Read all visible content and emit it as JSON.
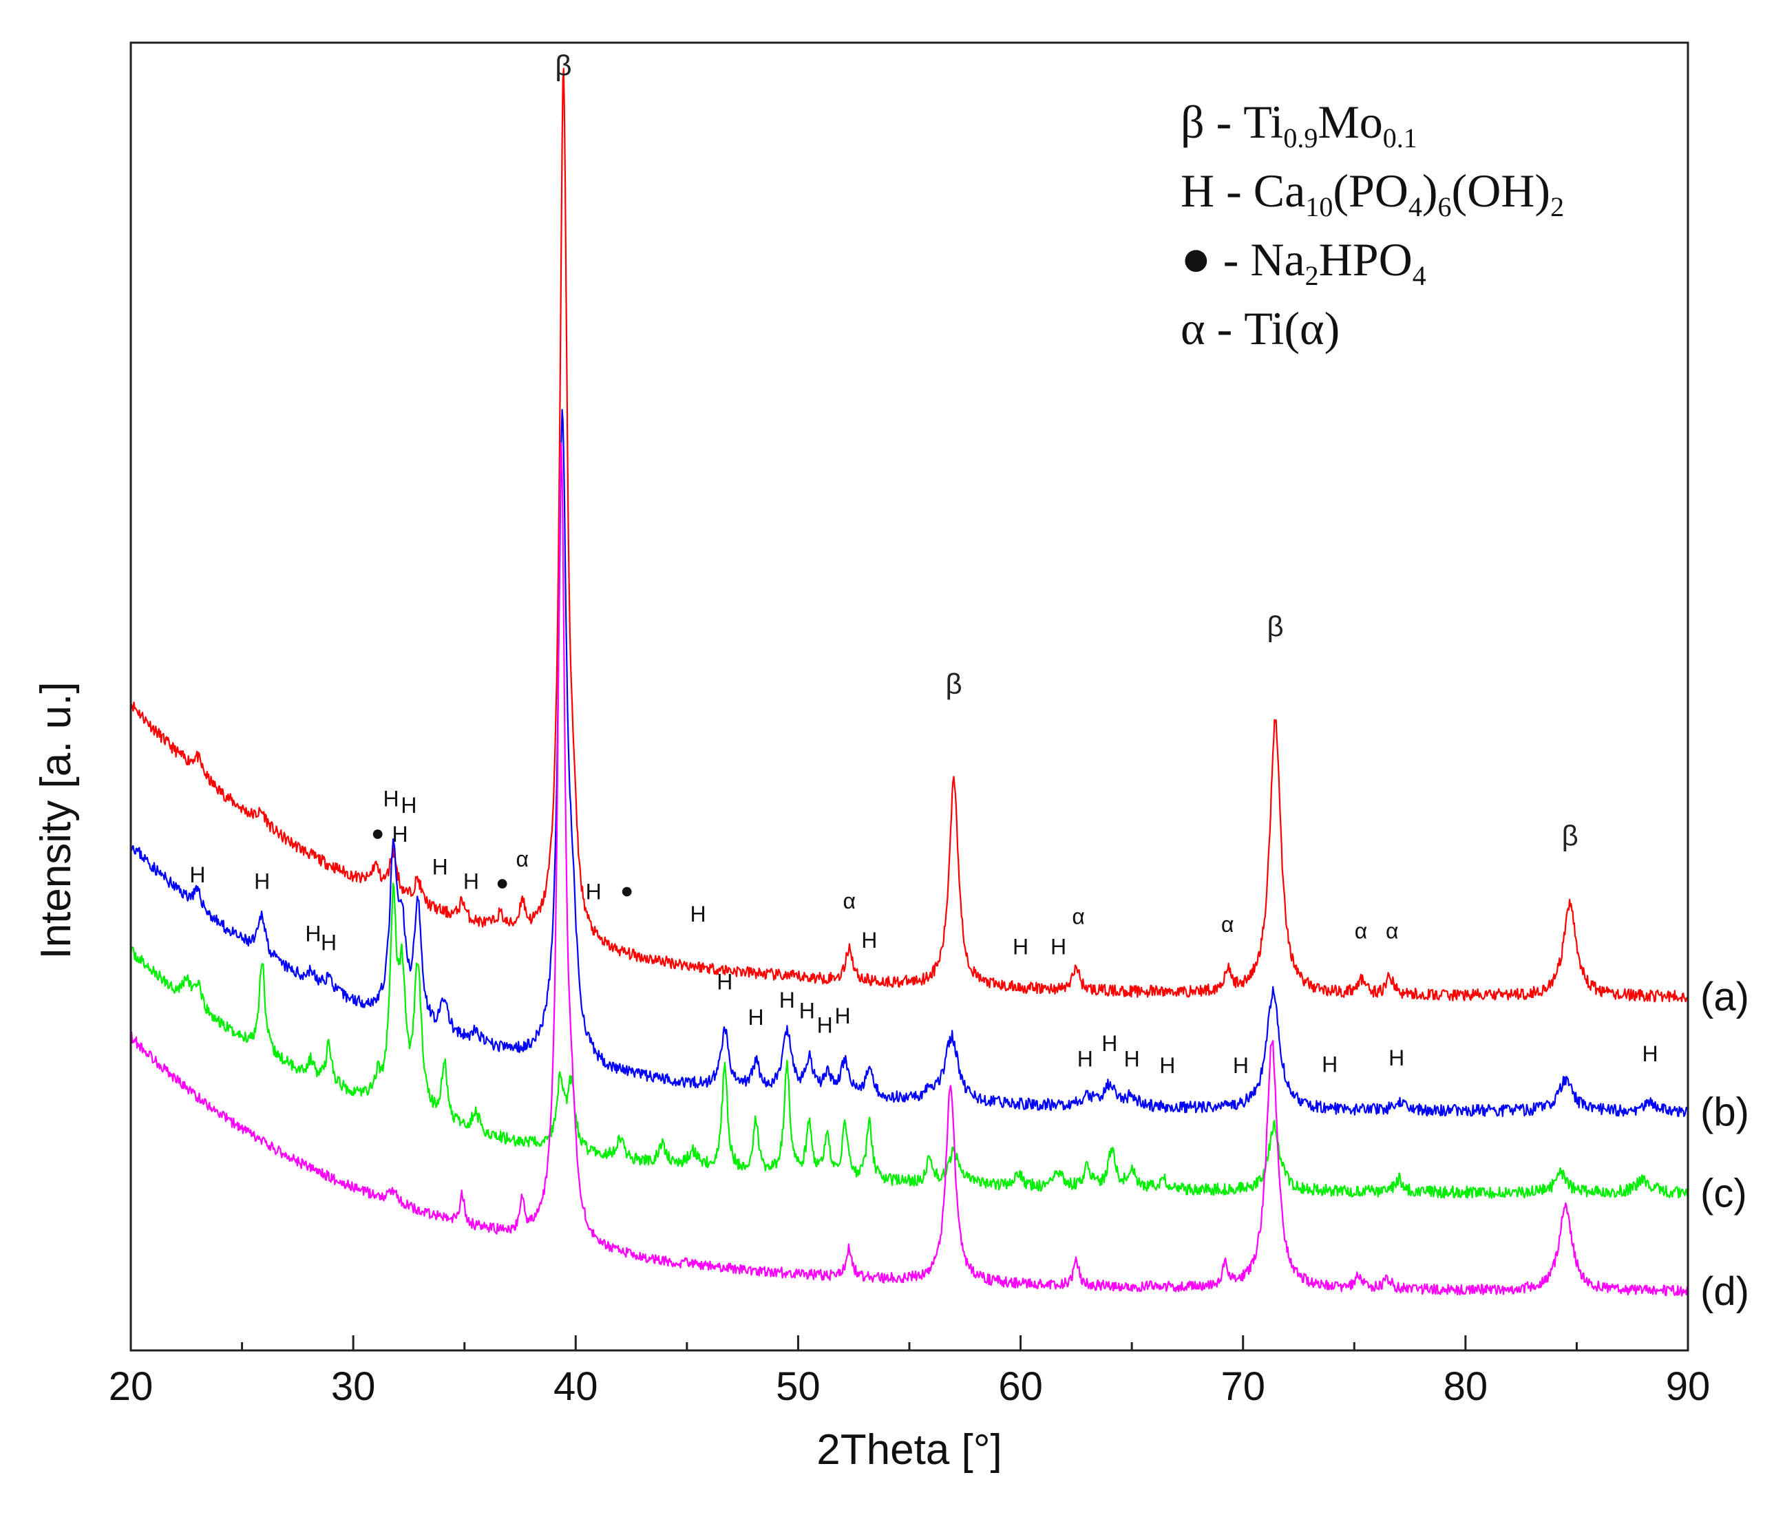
{
  "chart_data": {
    "type": "line",
    "title": "",
    "xlabel": "2Theta [°]",
    "ylabel": "Intensity [a. u.]",
    "xlim": [
      20,
      90
    ],
    "ylim": [
      0,
      100
    ],
    "x_ticks": [
      20,
      30,
      40,
      50,
      60,
      70,
      80,
      90
    ],
    "x_tick_labels": [
      "20",
      "30",
      "40",
      "50",
      "60",
      "70",
      "80",
      "90"
    ],
    "y_ticks_shown": false,
    "grid": false,
    "series": [
      {
        "name": "(a)",
        "color": "#ff0000",
        "offset": 27.0,
        "baseline": {
          "a": 22.5,
          "k": 0.09
        },
        "noise": 0.45,
        "seed": 11,
        "peaks": [
          {
            "x": 23.0,
            "h": 1.2,
            "w": 0.25
          },
          {
            "x": 25.9,
            "h": 0.9,
            "w": 0.25
          },
          {
            "x": 31.0,
            "h": 1.6,
            "w": 0.2
          },
          {
            "x": 31.8,
            "h": 3.2,
            "w": 0.2
          },
          {
            "x": 32.9,
            "h": 1.8,
            "w": 0.2
          },
          {
            "x": 34.9,
            "h": 1.4,
            "w": 0.15
          },
          {
            "x": 36.6,
            "h": 1.0,
            "w": 0.2
          },
          {
            "x": 37.6,
            "h": 2.2,
            "w": 0.15
          },
          {
            "x": 39.45,
            "h": 66.0,
            "w": 0.2
          },
          {
            "x": 39.9,
            "h": 5.0,
            "w": 0.2
          },
          {
            "x": 52.3,
            "h": 2.6,
            "w": 0.18
          },
          {
            "x": 57.0,
            "h": 16.0,
            "w": 0.25
          },
          {
            "x": 62.5,
            "h": 1.8,
            "w": 0.18
          },
          {
            "x": 69.3,
            "h": 1.6,
            "w": 0.18
          },
          {
            "x": 71.45,
            "h": 21.0,
            "w": 0.3
          },
          {
            "x": 75.3,
            "h": 1.1,
            "w": 0.2
          },
          {
            "x": 76.6,
            "h": 1.4,
            "w": 0.18
          },
          {
            "x": 84.7,
            "h": 7.0,
            "w": 0.35
          }
        ]
      },
      {
        "name": "(b)",
        "color": "#0000ff",
        "offset": 18.2,
        "baseline": {
          "a": 20.5,
          "k": 0.09
        },
        "noise": 0.45,
        "seed": 23,
        "peaks": [
          {
            "x": 23.0,
            "h": 1.2,
            "w": 0.25
          },
          {
            "x": 25.9,
            "h": 3.0,
            "w": 0.2
          },
          {
            "x": 28.1,
            "h": 0.8,
            "w": 0.2
          },
          {
            "x": 28.9,
            "h": 1.1,
            "w": 0.2
          },
          {
            "x": 31.8,
            "h": 12.0,
            "w": 0.2
          },
          {
            "x": 32.2,
            "h": 6.0,
            "w": 0.2
          },
          {
            "x": 32.9,
            "h": 9.0,
            "w": 0.2
          },
          {
            "x": 34.1,
            "h": 2.5,
            "w": 0.2
          },
          {
            "x": 35.5,
            "h": 0.8,
            "w": 0.25
          },
          {
            "x": 39.4,
            "h": 48.0,
            "w": 0.22
          },
          {
            "x": 39.85,
            "h": 8.0,
            "w": 0.25
          },
          {
            "x": 46.7,
            "h": 4.5,
            "w": 0.2
          },
          {
            "x": 48.1,
            "h": 2.0,
            "w": 0.2
          },
          {
            "x": 49.5,
            "h": 4.5,
            "w": 0.25
          },
          {
            "x": 50.5,
            "h": 2.5,
            "w": 0.2
          },
          {
            "x": 51.3,
            "h": 1.5,
            "w": 0.2
          },
          {
            "x": 52.1,
            "h": 2.6,
            "w": 0.22
          },
          {
            "x": 53.2,
            "h": 2.2,
            "w": 0.22
          },
          {
            "x": 55.9,
            "h": 0.8,
            "w": 0.25
          },
          {
            "x": 56.9,
            "h": 5.0,
            "w": 0.35
          },
          {
            "x": 63.0,
            "h": 0.8,
            "w": 0.3
          },
          {
            "x": 64.0,
            "h": 1.6,
            "w": 0.3
          },
          {
            "x": 65.0,
            "h": 0.8,
            "w": 0.3
          },
          {
            "x": 71.35,
            "h": 9.0,
            "w": 0.35
          },
          {
            "x": 77.0,
            "h": 0.6,
            "w": 0.3
          },
          {
            "x": 84.5,
            "h": 2.4,
            "w": 0.4
          },
          {
            "x": 88.3,
            "h": 0.8,
            "w": 0.3
          }
        ]
      },
      {
        "name": "(c)",
        "color": "#00ee00",
        "offset": 12.0,
        "baseline": {
          "a": 18.5,
          "k": 0.09
        },
        "noise": 0.45,
        "seed": 37,
        "peaks": [
          {
            "x": 22.5,
            "h": 1.5,
            "w": 0.2
          },
          {
            "x": 23.0,
            "h": 1.8,
            "w": 0.2
          },
          {
            "x": 25.9,
            "h": 7.0,
            "w": 0.15
          },
          {
            "x": 28.1,
            "h": 1.2,
            "w": 0.15
          },
          {
            "x": 28.9,
            "h": 3.0,
            "w": 0.15
          },
          {
            "x": 31.1,
            "h": 1.5,
            "w": 0.18
          },
          {
            "x": 31.8,
            "h": 15.0,
            "w": 0.18
          },
          {
            "x": 32.2,
            "h": 9.0,
            "w": 0.18
          },
          {
            "x": 32.9,
            "h": 11.0,
            "w": 0.2
          },
          {
            "x": 34.1,
            "h": 4.5,
            "w": 0.15
          },
          {
            "x": 35.5,
            "h": 1.5,
            "w": 0.2
          },
          {
            "x": 39.3,
            "h": 5.0,
            "w": 0.2
          },
          {
            "x": 39.8,
            "h": 5.0,
            "w": 0.2
          },
          {
            "x": 42.0,
            "h": 1.5,
            "w": 0.2
          },
          {
            "x": 43.9,
            "h": 1.5,
            "w": 0.2
          },
          {
            "x": 45.3,
            "h": 1.2,
            "w": 0.3
          },
          {
            "x": 46.7,
            "h": 8.0,
            "w": 0.15
          },
          {
            "x": 48.1,
            "h": 4.0,
            "w": 0.15
          },
          {
            "x": 49.5,
            "h": 8.5,
            "w": 0.15
          },
          {
            "x": 50.5,
            "h": 4.0,
            "w": 0.15
          },
          {
            "x": 51.3,
            "h": 3.0,
            "w": 0.15
          },
          {
            "x": 52.1,
            "h": 4.0,
            "w": 0.15
          },
          {
            "x": 53.2,
            "h": 4.5,
            "w": 0.15
          },
          {
            "x": 55.9,
            "h": 2.0,
            "w": 0.15
          },
          {
            "x": 57.0,
            "h": 2.5,
            "w": 0.3
          },
          {
            "x": 59.9,
            "h": 1.0,
            "w": 0.2
          },
          {
            "x": 61.7,
            "h": 1.2,
            "w": 0.2
          },
          {
            "x": 63.0,
            "h": 1.5,
            "w": 0.2
          },
          {
            "x": 64.1,
            "h": 3.0,
            "w": 0.2
          },
          {
            "x": 65.0,
            "h": 1.6,
            "w": 0.2
          },
          {
            "x": 66.4,
            "h": 0.8,
            "w": 0.2
          },
          {
            "x": 71.4,
            "h": 5.0,
            "w": 0.3
          },
          {
            "x": 77.0,
            "h": 1.0,
            "w": 0.2
          },
          {
            "x": 84.3,
            "h": 1.5,
            "w": 0.3
          },
          {
            "x": 88.0,
            "h": 1.0,
            "w": 0.4
          }
        ]
      },
      {
        "name": "(d)",
        "color": "#ff00ff",
        "offset": 4.5,
        "baseline": {
          "a": 19.5,
          "k": 0.09
        },
        "noise": 0.4,
        "seed": 53,
        "peaks": [
          {
            "x": 31.8,
            "h": 0.9,
            "w": 0.3
          },
          {
            "x": 34.9,
            "h": 2.2,
            "w": 0.12
          },
          {
            "x": 37.6,
            "h": 2.4,
            "w": 0.12
          },
          {
            "x": 39.35,
            "h": 60.0,
            "w": 0.2
          },
          {
            "x": 39.8,
            "h": 6.0,
            "w": 0.25
          },
          {
            "x": 52.3,
            "h": 2.2,
            "w": 0.15
          },
          {
            "x": 56.85,
            "h": 15.0,
            "w": 0.25
          },
          {
            "x": 62.5,
            "h": 1.8,
            "w": 0.15
          },
          {
            "x": 69.2,
            "h": 1.6,
            "w": 0.15
          },
          {
            "x": 71.3,
            "h": 19.0,
            "w": 0.3
          },
          {
            "x": 75.2,
            "h": 1.0,
            "w": 0.2
          },
          {
            "x": 76.5,
            "h": 0.8,
            "w": 0.2
          },
          {
            "x": 84.5,
            "h": 6.5,
            "w": 0.35
          }
        ]
      }
    ],
    "peak_annotations": [
      {
        "text": "β",
        "x": 39.45,
        "y": 97.5,
        "color": "#222222",
        "size": "large"
      },
      {
        "text": "β",
        "x": 57.0,
        "y": 50.2,
        "color": "#222222",
        "size": "large"
      },
      {
        "text": "β",
        "x": 71.45,
        "y": 54.6,
        "color": "#222222",
        "size": "large"
      },
      {
        "text": "β",
        "x": 84.7,
        "y": 38.6,
        "color": "#222222",
        "size": "large"
      },
      {
        "text": "●",
        "x": 31.1,
        "y": 39.0,
        "color": "#111111",
        "size": "small"
      },
      {
        "text": "●",
        "x": 36.7,
        "y": 35.2,
        "color": "#111111",
        "size": "small"
      },
      {
        "text": "●",
        "x": 42.3,
        "y": 34.6,
        "color": "#111111",
        "size": "small"
      },
      {
        "text": "H",
        "x": 31.7,
        "y": 41.6,
        "color": "#111111",
        "size": "small"
      },
      {
        "text": "H",
        "x": 32.5,
        "y": 41.1,
        "color": "#111111",
        "size": "small"
      },
      {
        "text": "H",
        "x": 32.1,
        "y": 38.9,
        "color": "#111111",
        "size": "small"
      },
      {
        "text": "H",
        "x": 33.9,
        "y": 36.4,
        "color": "#111111",
        "size": "small"
      },
      {
        "text": "H",
        "x": 35.3,
        "y": 35.3,
        "color": "#111111",
        "size": "small"
      },
      {
        "text": "α",
        "x": 37.6,
        "y": 37.0,
        "color": "#111111",
        "size": "small"
      },
      {
        "text": "H",
        "x": 40.8,
        "y": 34.5,
        "color": "#111111",
        "size": "small"
      },
      {
        "text": "H",
        "x": 45.5,
        "y": 32.8,
        "color": "#111111",
        "size": "small"
      },
      {
        "text": "α",
        "x": 52.3,
        "y": 33.8,
        "color": "#111111",
        "size": "small"
      },
      {
        "text": "H",
        "x": 53.2,
        "y": 30.8,
        "color": "#111111",
        "size": "small"
      },
      {
        "text": "H",
        "x": 60.0,
        "y": 30.3,
        "color": "#111111",
        "size": "small"
      },
      {
        "text": "H",
        "x": 61.7,
        "y": 30.3,
        "color": "#111111",
        "size": "small"
      },
      {
        "text": "α",
        "x": 62.6,
        "y": 32.6,
        "color": "#111111",
        "size": "small"
      },
      {
        "text": "α",
        "x": 69.3,
        "y": 32.0,
        "color": "#111111",
        "size": "small"
      },
      {
        "text": "α",
        "x": 75.3,
        "y": 31.5,
        "color": "#111111",
        "size": "small"
      },
      {
        "text": "α",
        "x": 76.7,
        "y": 31.5,
        "color": "#111111",
        "size": "small"
      },
      {
        "text": "H",
        "x": 23.0,
        "y": 35.8,
        "color": "#111111",
        "size": "small"
      },
      {
        "text": "H",
        "x": 25.9,
        "y": 35.3,
        "color": "#111111",
        "size": "small"
      },
      {
        "text": "H",
        "x": 28.2,
        "y": 31.3,
        "color": "#111111",
        "size": "small"
      },
      {
        "text": "H",
        "x": 28.9,
        "y": 30.6,
        "color": "#111111",
        "size": "small"
      },
      {
        "text": "H",
        "x": 46.7,
        "y": 27.6,
        "color": "#111111",
        "size": "small"
      },
      {
        "text": "H",
        "x": 48.1,
        "y": 24.9,
        "color": "#111111",
        "size": "small"
      },
      {
        "text": "H",
        "x": 49.5,
        "y": 26.2,
        "color": "#111111",
        "size": "small"
      },
      {
        "text": "H",
        "x": 50.4,
        "y": 25.4,
        "color": "#111111",
        "size": "small"
      },
      {
        "text": "H",
        "x": 51.2,
        "y": 24.3,
        "color": "#111111",
        "size": "small"
      },
      {
        "text": "H",
        "x": 52.0,
        "y": 25.0,
        "color": "#111111",
        "size": "small"
      },
      {
        "text": "H",
        "x": 62.9,
        "y": 21.7,
        "color": "#111111",
        "size": "small"
      },
      {
        "text": "H",
        "x": 64.0,
        "y": 22.9,
        "color": "#111111",
        "size": "small"
      },
      {
        "text": "H",
        "x": 65.0,
        "y": 21.7,
        "color": "#111111",
        "size": "small"
      },
      {
        "text": "H",
        "x": 66.6,
        "y": 21.2,
        "color": "#111111",
        "size": "small"
      },
      {
        "text": "H",
        "x": 69.9,
        "y": 21.2,
        "color": "#111111",
        "size": "small"
      },
      {
        "text": "H",
        "x": 73.9,
        "y": 21.3,
        "color": "#111111",
        "size": "small"
      },
      {
        "text": "H",
        "x": 76.9,
        "y": 21.8,
        "color": "#111111",
        "size": "small"
      },
      {
        "text": "H",
        "x": 88.3,
        "y": 22.1,
        "color": "#111111",
        "size": "small"
      }
    ],
    "legend": {
      "placement": "top-right",
      "entries": [
        {
          "symbol": "β",
          "dash": " - ",
          "formula": [
            {
              "t": "Ti"
            },
            {
              "t": "0.9",
              "sub": true
            },
            {
              "t": "Mo"
            },
            {
              "t": "0.1",
              "sub": true
            }
          ]
        },
        {
          "symbol": "H",
          "dash": " - ",
          "formula": [
            {
              "t": "Ca"
            },
            {
              "t": "10",
              "sub": true
            },
            {
              "t": "(PO"
            },
            {
              "t": "4",
              "sub": true
            },
            {
              "t": ")"
            },
            {
              "t": "6",
              "sub": true
            },
            {
              "t": "(OH)"
            },
            {
              "t": "2",
              "sub": true
            }
          ]
        },
        {
          "symbol": "●",
          "dash": " - ",
          "formula": [
            {
              "t": "Na"
            },
            {
              "t": "2",
              "sub": true
            },
            {
              "t": "HPO"
            },
            {
              "t": "4",
              "sub": true
            }
          ]
        },
        {
          "symbol": "α",
          "dash": " - ",
          "formula": [
            {
              "t": "Ti(α)"
            }
          ]
        }
      ]
    }
  }
}
